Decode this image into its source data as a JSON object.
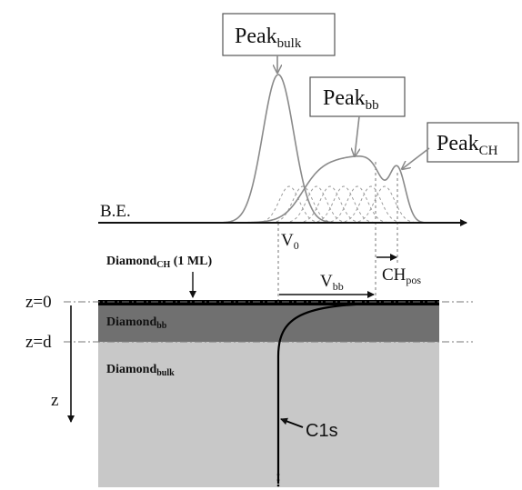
{
  "labels": {
    "peak_bulk": {
      "text": "Peak",
      "sub": "bulk"
    },
    "peak_bb": {
      "text": "Peak",
      "sub": "bb"
    },
    "peak_ch": {
      "text": "Peak",
      "sub": "CH"
    },
    "be": "B.E.",
    "v0": {
      "text": "V",
      "sub": "0"
    },
    "diamond_ch": {
      "text": "Diamond",
      "sub": "CH",
      "tail": " (1 ML)"
    },
    "vbb": {
      "text": "V",
      "sub": "bb"
    },
    "ch_pos": {
      "text": "CH",
      "sub": "pos"
    },
    "z0": "z=0",
    "zd": "z=d",
    "diamond_bb": {
      "text": "Diamond",
      "sub": "bb"
    },
    "diamond_bulk": {
      "text": "Diamond",
      "sub": "bulk"
    },
    "z": "z",
    "c1s": "C1s"
  }
}
